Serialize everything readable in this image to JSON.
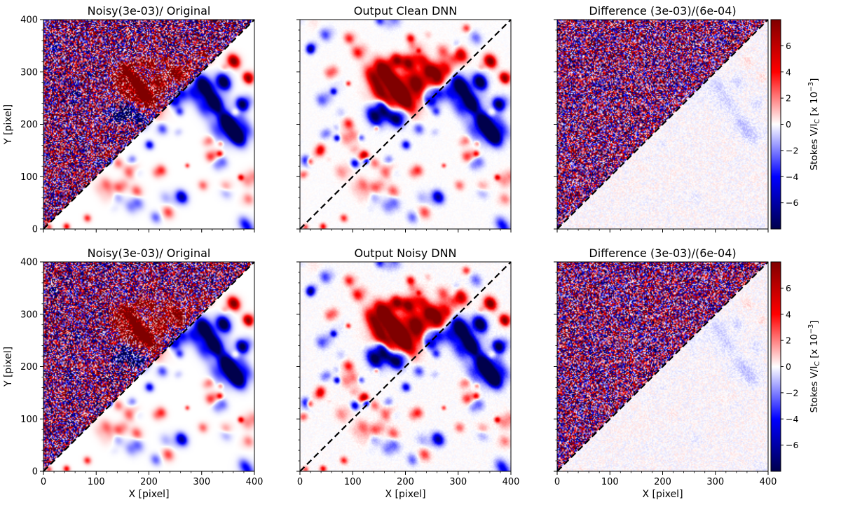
{
  "chart_data": {
    "type": "heatmap",
    "description_free": true,
    "panels": [
      {
        "title": "Noisy(3e-03)/ Original",
        "kind": "noisy-original",
        "xlabel": "",
        "ylabel": "Y [pixel]"
      },
      {
        "title": "Output Clean DNN",
        "kind": "output-clean",
        "xlabel": "",
        "ylabel": ""
      },
      {
        "title": "Difference  (3e-03)/(6e-04)",
        "kind": "difference",
        "xlabel": "",
        "ylabel": ""
      },
      {
        "title": "Noisy(3e-03)/ Original",
        "kind": "noisy-original",
        "xlabel": "X [pixel]",
        "ylabel": "Y [pixel]"
      },
      {
        "title": "Output Noisy DNN",
        "kind": "output-noisy",
        "xlabel": "X [pixel]",
        "ylabel": ""
      },
      {
        "title": "Difference  (3e-03)/(6e-04)",
        "kind": "difference",
        "xlabel": "X [pixel]",
        "ylabel": ""
      }
    ],
    "xlim": [
      0,
      400
    ],
    "ylim": [
      0,
      400
    ],
    "xticks": [
      0,
      100,
      200,
      300,
      400
    ],
    "yticks": [
      0,
      100,
      200,
      300,
      400
    ],
    "diagonal": {
      "from": [
        0,
        0
      ],
      "to": [
        400,
        400
      ],
      "style": "dashed"
    },
    "colorbar": {
      "label_prefix": "Stokes V/I",
      "label_sub": "C",
      "label_units": " [x 10",
      "label_exp": "−3",
      "label_close": "]",
      "range": [
        -8,
        8
      ],
      "ticks": [
        -6,
        -4,
        -2,
        0,
        2,
        4,
        6
      ],
      "tick_labels": [
        "−6",
        "−4",
        "−2",
        "0",
        "2",
        "4",
        "6"
      ],
      "colormap": "seismic"
    }
  }
}
